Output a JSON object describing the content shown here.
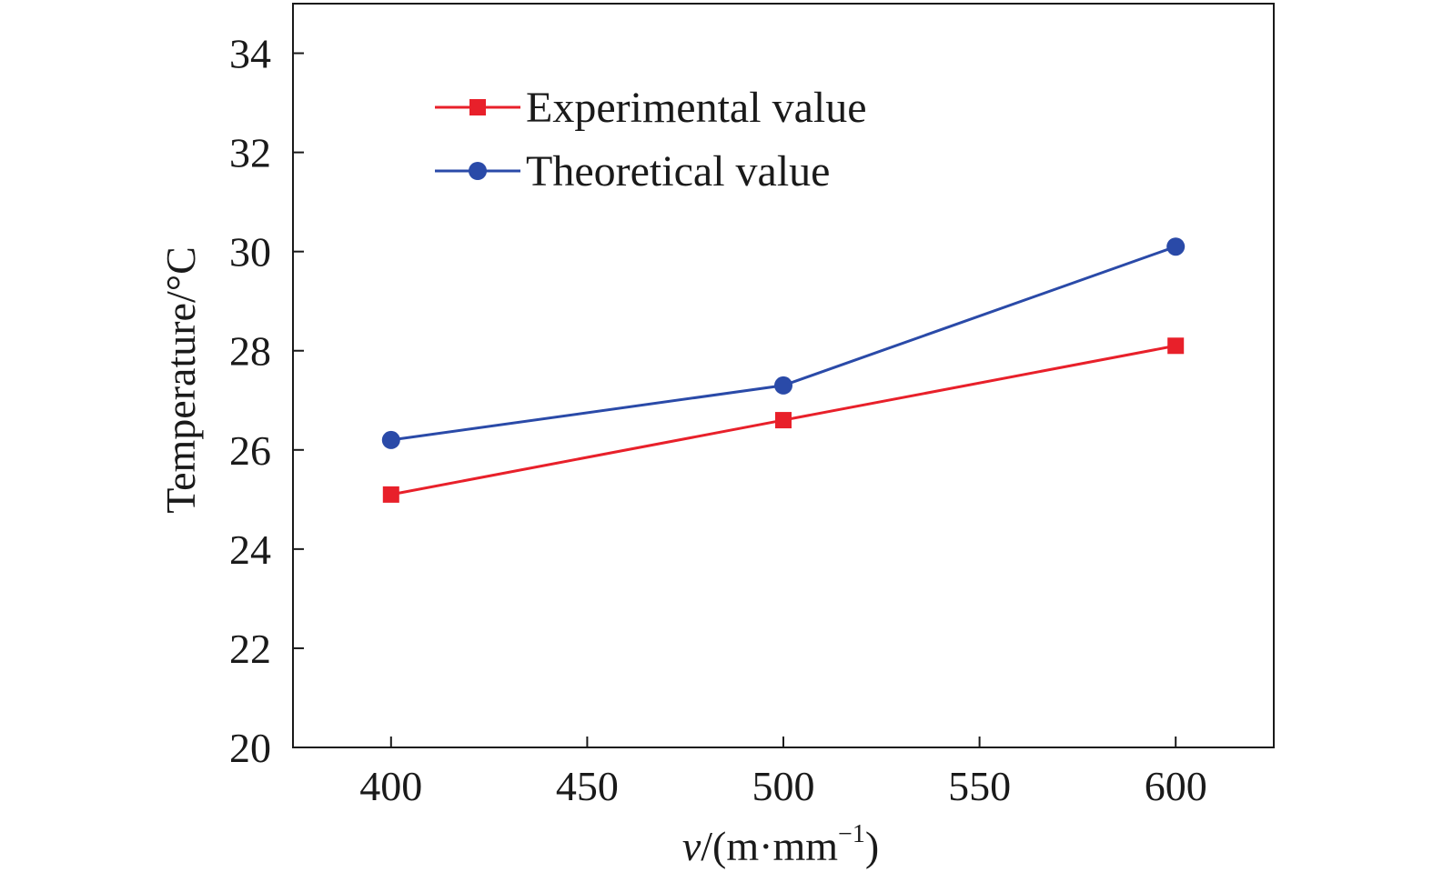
{
  "chart_data": {
    "type": "line",
    "x": [
      400,
      500,
      600
    ],
    "series": [
      {
        "name": "Experimental value",
        "values": [
          25.1,
          26.6,
          28.1
        ],
        "color": "#e8202a",
        "marker": "square"
      },
      {
        "name": "Theoretical value",
        "values": [
          26.2,
          27.3,
          30.1
        ],
        "color": "#2a4aa8",
        "marker": "circle"
      }
    ],
    "xlabel_italic": "v",
    "xlabel_rest": "/(m·mm",
    "xlabel_sup": "−1",
    "xlabel_close": ")",
    "ylabel": "Temperature/°C",
    "xlim": [
      375,
      625
    ],
    "ylim": [
      20,
      35
    ],
    "xticks": [
      400,
      450,
      500,
      550,
      600
    ],
    "yticks": [
      20,
      22,
      24,
      26,
      28,
      30,
      32,
      34
    ],
    "legend_position": "top-left",
    "grid": false
  }
}
